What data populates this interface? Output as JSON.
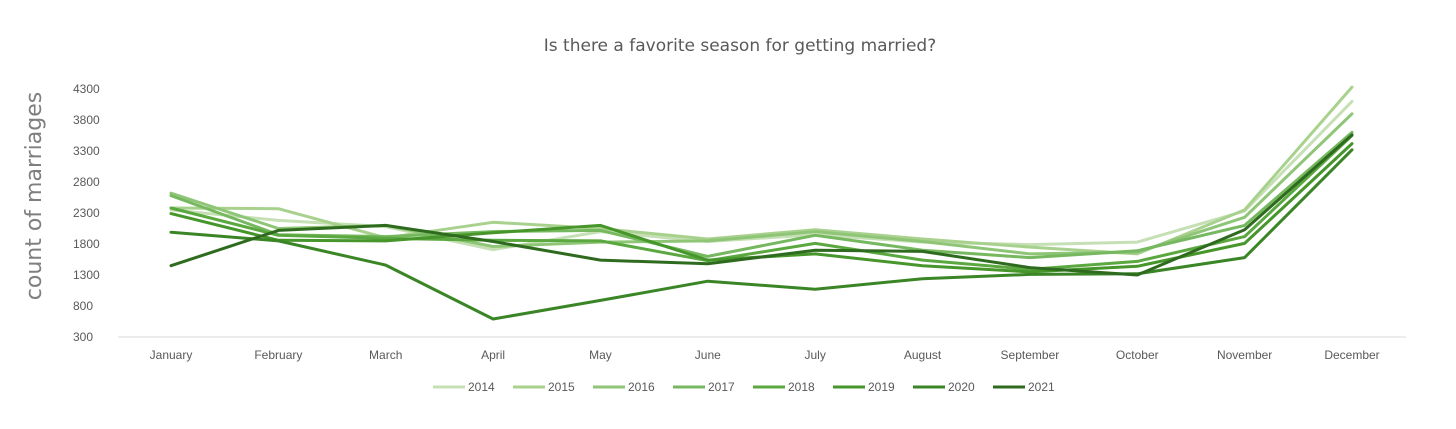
{
  "chart_data": {
    "type": "line",
    "title": "Is there a favorite season for getting married?",
    "xlabel": "",
    "ylabel": "count of marriages",
    "categories": [
      "January",
      "February",
      "March",
      "April",
      "May",
      "June",
      "July",
      "August",
      "September",
      "October",
      "November",
      "December"
    ],
    "y_ticks": [
      "4300",
      "3800",
      "3300",
      "2800",
      "2300",
      "1800",
      "1300",
      "800",
      "300"
    ],
    "ylim": [
      300,
      4300
    ],
    "grid": false,
    "legend_position": "bottom",
    "series": [
      {
        "name": "2014",
        "color": "#c5e0b4",
        "values": [
          2350,
          2180,
          2080,
          1710,
          2000,
          1840,
          1950,
          1830,
          1790,
          1830,
          2330,
          4100
        ]
      },
      {
        "name": "2015",
        "color": "#a9d18e",
        "values": [
          2380,
          2370,
          1900,
          2150,
          2050,
          1880,
          2030,
          1880,
          1750,
          1640,
          2350,
          4330
        ]
      },
      {
        "name": "2016",
        "color": "#8fc577",
        "values": [
          2620,
          2050,
          2100,
          1760,
          1830,
          1850,
          2000,
          1840,
          1640,
          1670,
          2230,
          3900
        ]
      },
      {
        "name": "2017",
        "color": "#76b85f",
        "values": [
          2580,
          1950,
          1920,
          2000,
          2020,
          1600,
          1940,
          1700,
          1580,
          1690,
          2100,
          3600
        ]
      },
      {
        "name": "2018",
        "color": "#5aa83f",
        "values": [
          2380,
          1940,
          1890,
          1860,
          1850,
          1530,
          1810,
          1540,
          1390,
          1520,
          1920,
          3550
        ]
      },
      {
        "name": "2019",
        "color": "#46962b",
        "values": [
          2290,
          1860,
          1850,
          1980,
          2100,
          1540,
          1640,
          1450,
          1350,
          1440,
          1810,
          3420
        ]
      },
      {
        "name": "2020",
        "color": "#3a8526",
        "values": [
          1990,
          1850,
          1460,
          590,
          890,
          1200,
          1070,
          1240,
          1310,
          1320,
          1580,
          3320
        ]
      },
      {
        "name": "2021",
        "color": "#2e6b1f",
        "values": [
          1450,
          2020,
          2100,
          1840,
          1540,
          1480,
          1700,
          1680,
          1420,
          1300,
          2030,
          3560
        ]
      }
    ]
  }
}
